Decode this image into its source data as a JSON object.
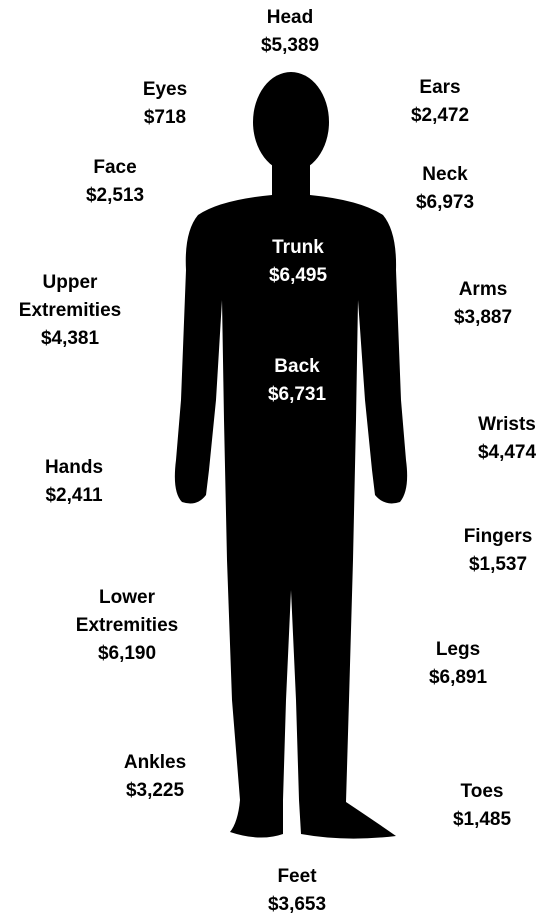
{
  "labels": [
    {
      "name": "Head",
      "amount": "$5,389"
    },
    {
      "name": "Eyes",
      "amount": "$718"
    },
    {
      "name": "Ears",
      "amount": "$2,472"
    },
    {
      "name": "Face",
      "amount": "$2,513"
    },
    {
      "name": "Neck",
      "amount": "$6,973"
    },
    {
      "name": "Trunk",
      "amount": "$6,495"
    },
    {
      "name": "Upper Extremities",
      "amount": "$4,381"
    },
    {
      "name": "Arms",
      "amount": "$3,887"
    },
    {
      "name": "Back",
      "amount": "$6,731"
    },
    {
      "name": "Wrists",
      "amount": "$4,474"
    },
    {
      "name": "Hands",
      "amount": "$2,411"
    },
    {
      "name": "Fingers",
      "amount": "$1,537"
    },
    {
      "name": "Lower Extremities",
      "amount": "$6,190"
    },
    {
      "name": "Legs",
      "amount": "$6,891"
    },
    {
      "name": "Ankles",
      "amount": "$3,225"
    },
    {
      "name": "Toes",
      "amount": "$1,485"
    },
    {
      "name": "Feet",
      "amount": "$3,653"
    }
  ]
}
